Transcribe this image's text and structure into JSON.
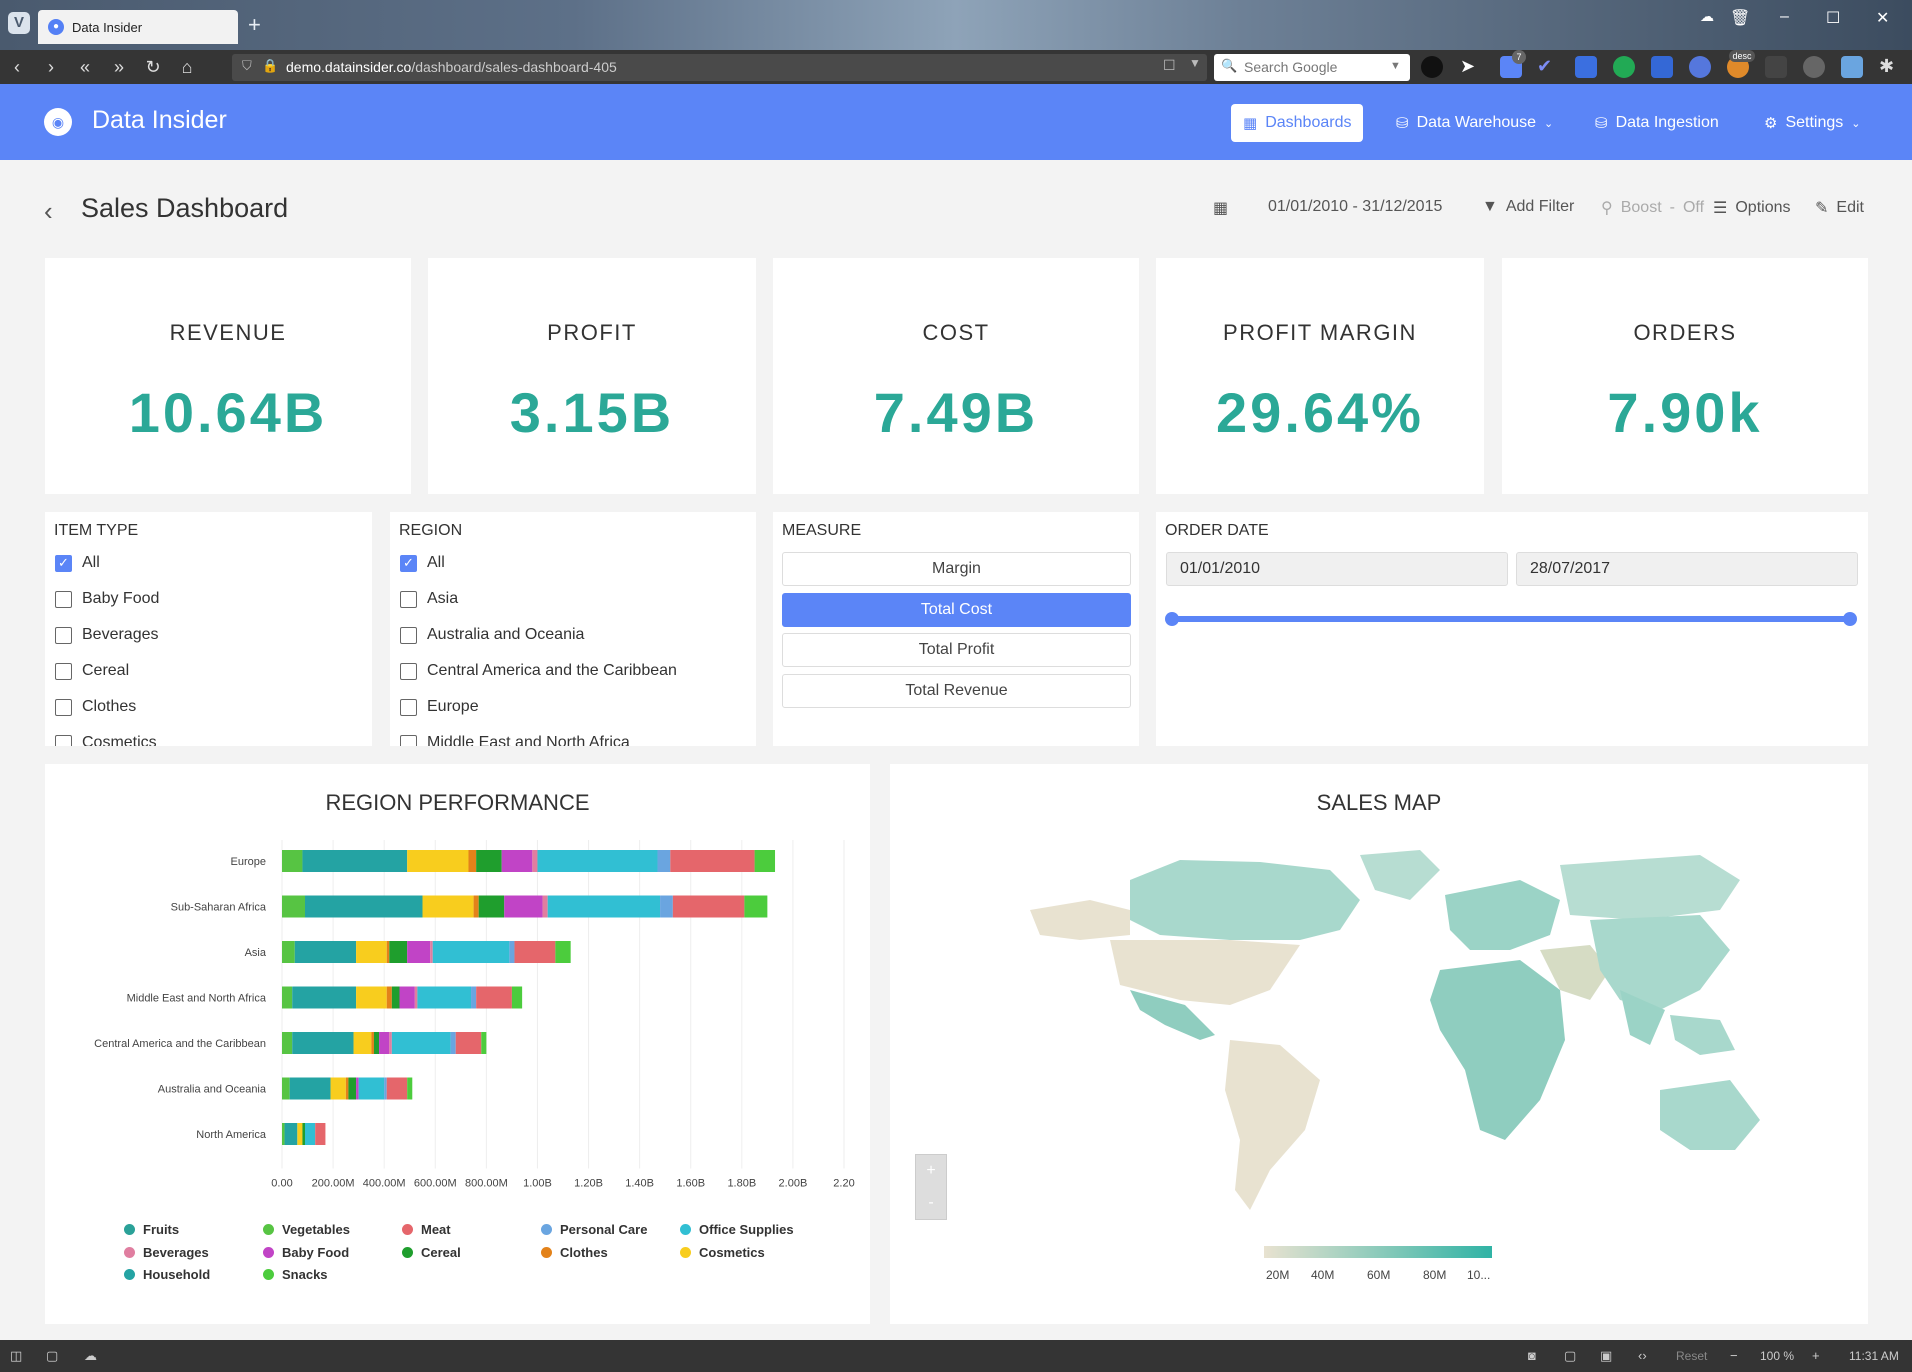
{
  "browser": {
    "tab_title": "Data Insider",
    "url_domain": "demo.datainsider.co",
    "url_path": "/dashboard/sales-dashboard-405",
    "search_placeholder": "Search Google",
    "zoom_level": "100 %",
    "reset_label": "Reset",
    "time": "11:31 AM",
    "ext_badge": "7",
    "ext_desc_label": "desc"
  },
  "app": {
    "name": "Data Insider",
    "nav": [
      {
        "label": "Dashboards",
        "active": true
      },
      {
        "label": "Data Warehouse"
      },
      {
        "label": "Data Ingestion"
      },
      {
        "label": "Settings"
      }
    ]
  },
  "dashboard": {
    "title": "Sales Dashboard",
    "date_range": "01/01/2010 - 31/12/2015",
    "add_filter": "Add Filter",
    "boost_label": "Boost",
    "boost_value": "Off",
    "options_label": "Options",
    "edit_label": "Edit"
  },
  "kpis": [
    {
      "label": "REVENUE",
      "value": "10.64B"
    },
    {
      "label": "PROFIT",
      "value": "3.15B"
    },
    {
      "label": "COST",
      "value": "7.49B"
    },
    {
      "label": "PROFIT MARGIN",
      "value": "29.64%"
    },
    {
      "label": "ORDERS",
      "value": "7.90k"
    }
  ],
  "filters": {
    "item_type": {
      "title": "ITEM TYPE",
      "options": [
        "All",
        "Baby Food",
        "Beverages",
        "Cereal",
        "Clothes",
        "Cosmetics"
      ],
      "checked": [
        "All"
      ]
    },
    "region": {
      "title": "REGION",
      "options": [
        "All",
        "Asia",
        "Australia and Oceania",
        "Central America and the Caribbean",
        "Europe",
        "Middle East and North Africa"
      ],
      "checked": [
        "All"
      ]
    },
    "measure": {
      "title": "MEASURE",
      "options": [
        "Margin",
        "Total Cost",
        "Total Profit",
        "Total Revenue"
      ],
      "selected": "Total Cost"
    },
    "order_date": {
      "title": "ORDER DATE",
      "from": "01/01/2010",
      "to": "28/07/2017",
      "range_fraction": [
        0,
        1
      ]
    }
  },
  "region_chart": {
    "title": "REGION PERFORMANCE",
    "legend": [
      {
        "name": "Fruits",
        "color": "#2aa198"
      },
      {
        "name": "Vegetables",
        "color": "#57c443"
      },
      {
        "name": "Meat",
        "color": "#e5666b"
      },
      {
        "name": "Personal Care",
        "color": "#6aa5e0"
      },
      {
        "name": "Office Supplies",
        "color": "#31bfd3"
      },
      {
        "name": "Beverages",
        "color": "#e07ea0"
      },
      {
        "name": "Baby Food",
        "color": "#c144c6"
      },
      {
        "name": "Cereal",
        "color": "#1f9e2d"
      },
      {
        "name": "Clothes",
        "color": "#e3821a"
      },
      {
        "name": "Cosmetics",
        "color": "#f8cd1e"
      },
      {
        "name": "Household",
        "color": "#24a3a3"
      },
      {
        "name": "Snacks",
        "color": "#4ccc3d"
      }
    ]
  },
  "chart_data": {
    "type": "bar",
    "orientation": "horizontal",
    "stacked": true,
    "title": "REGION PERFORMANCE",
    "categories": [
      "Europe",
      "Sub-Saharan Africa",
      "Asia",
      "Middle East and North Africa",
      "Central America and the Caribbean",
      "Australia and Oceania",
      "North America"
    ],
    "xlim": [
      0,
      2.2
    ],
    "x_unit": "B",
    "x_ticks": [
      "0.00",
      "200.00M",
      "400.00M",
      "600.00M",
      "800.00M",
      "1.00B",
      "1.20B",
      "1.40B",
      "1.60B",
      "1.80B",
      "2.00B",
      "2.20"
    ],
    "grid": true,
    "legend_position": "bottom",
    "series": [
      {
        "name": "Vegetables",
        "values": [
          0.08,
          0.09,
          0.05,
          0.04,
          0.04,
          0.03,
          0.01
        ]
      },
      {
        "name": "Household",
        "values": [
          0.41,
          0.46,
          0.24,
          0.25,
          0.24,
          0.16,
          0.05
        ]
      },
      {
        "name": "Cosmetics",
        "values": [
          0.24,
          0.2,
          0.12,
          0.12,
          0.07,
          0.06,
          0.02
        ]
      },
      {
        "name": "Clothes",
        "values": [
          0.03,
          0.02,
          0.01,
          0.02,
          0.01,
          0.01,
          0.0
        ]
      },
      {
        "name": "Cereal",
        "values": [
          0.1,
          0.1,
          0.07,
          0.03,
          0.02,
          0.03,
          0.01
        ]
      },
      {
        "name": "Baby Food",
        "values": [
          0.12,
          0.15,
          0.09,
          0.06,
          0.04,
          0.01,
          0.0
        ]
      },
      {
        "name": "Beverages",
        "values": [
          0.02,
          0.02,
          0.01,
          0.01,
          0.01,
          0.0,
          0.0
        ]
      },
      {
        "name": "Office Supplies",
        "values": [
          0.47,
          0.44,
          0.3,
          0.21,
          0.23,
          0.1,
          0.04
        ]
      },
      {
        "name": "Personal Care",
        "values": [
          0.05,
          0.05,
          0.02,
          0.02,
          0.02,
          0.01,
          0.0
        ]
      },
      {
        "name": "Meat",
        "values": [
          0.33,
          0.28,
          0.16,
          0.14,
          0.1,
          0.08,
          0.04
        ]
      },
      {
        "name": "Snacks",
        "values": [
          0.08,
          0.09,
          0.06,
          0.04,
          0.02,
          0.02,
          0.0
        ]
      }
    ]
  },
  "sales_map": {
    "title": "SALES MAP",
    "scale_ticks": [
      "20M",
      "40M",
      "60M",
      "80M",
      "10..."
    ],
    "scale_colors": [
      "#e8e2d0",
      "#30b3a5"
    ]
  }
}
